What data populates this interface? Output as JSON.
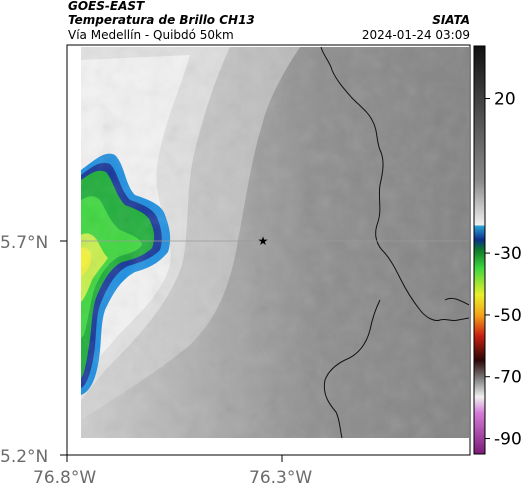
{
  "header": {
    "satellite": "GOES-EAST",
    "product": "Temperatura de Brillo CH13",
    "region": "Vía Medellín - Quibdó 50km",
    "organization": "SIATA",
    "timestamp": "2024-01-24 03:09"
  },
  "map": {
    "lat_ticks": [
      "5.7°N",
      "5.2°N"
    ],
    "lon_ticks": [
      "76.8°W",
      "76.3°W"
    ],
    "marker": "star"
  },
  "colorbar": {
    "tick_labels": [
      "20",
      "-30",
      "-50",
      "-70",
      "-90"
    ],
    "tick_values": [
      20,
      -30,
      -50,
      -70,
      -90
    ],
    "range": [
      -95,
      37
    ]
  }
}
